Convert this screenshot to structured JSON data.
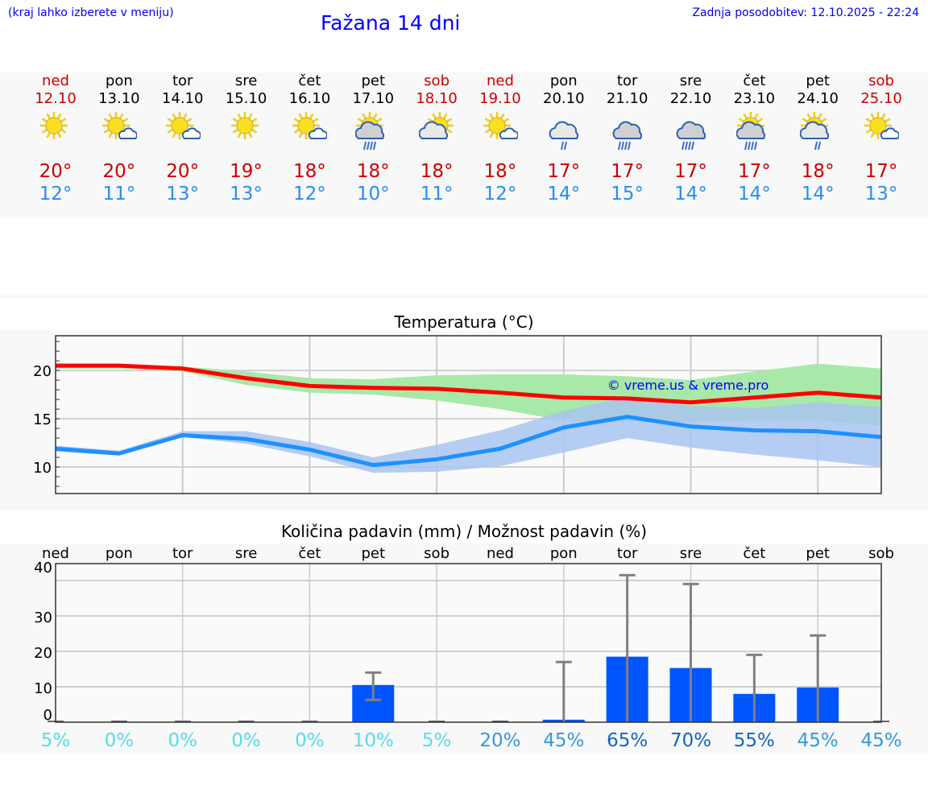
{
  "header": {
    "hint": "(kraj lahko izberete v meniju)",
    "title": "Fažana 14 dni",
    "updated": "Zadnja posodobitev: 12.10.2025 - 22:24"
  },
  "days": [
    {
      "name": "ned",
      "date": "12.10",
      "weekend": true,
      "icon": "sun",
      "max": "20°",
      "min": "12°"
    },
    {
      "name": "pon",
      "date": "13.10",
      "weekend": false,
      "icon": "sun-cloud",
      "max": "20°",
      "min": "11°"
    },
    {
      "name": "tor",
      "date": "14.10",
      "weekend": false,
      "icon": "sun-cloud",
      "max": "20°",
      "min": "13°"
    },
    {
      "name": "sre",
      "date": "15.10",
      "weekend": false,
      "icon": "sun",
      "max": "19°",
      "min": "13°"
    },
    {
      "name": "čet",
      "date": "16.10",
      "weekend": false,
      "icon": "sun-cloud",
      "max": "18°",
      "min": "12°"
    },
    {
      "name": "pet",
      "date": "17.10",
      "weekend": false,
      "icon": "sun-cloud-rain",
      "max": "18°",
      "min": "10°"
    },
    {
      "name": "sob",
      "date": "18.10",
      "weekend": true,
      "icon": "cloud-sun",
      "max": "18°",
      "min": "11°"
    },
    {
      "name": "ned",
      "date": "19.10",
      "weekend": true,
      "icon": "sun-cloud",
      "max": "18°",
      "min": "12°"
    },
    {
      "name": "pon",
      "date": "20.10",
      "weekend": false,
      "icon": "cloud-rain-light",
      "max": "17°",
      "min": "14°"
    },
    {
      "name": "tor",
      "date": "21.10",
      "weekend": false,
      "icon": "cloud-rain",
      "max": "17°",
      "min": "15°"
    },
    {
      "name": "sre",
      "date": "22.10",
      "weekend": false,
      "icon": "cloud-rain",
      "max": "17°",
      "min": "14°"
    },
    {
      "name": "čet",
      "date": "23.10",
      "weekend": false,
      "icon": "sun-cloud-rain",
      "max": "17°",
      "min": "14°"
    },
    {
      "name": "pet",
      "date": "24.10",
      "weekend": false,
      "icon": "sun-cloud-rain-light",
      "max": "18°",
      "min": "14°"
    },
    {
      "name": "sob",
      "date": "25.10",
      "weekend": true,
      "icon": "sun-cloud",
      "max": "17°",
      "min": "13°"
    }
  ],
  "colors": {
    "weekend": "#cc0000",
    "max": "#ff0000",
    "min": "#1e90ff",
    "maxband": "#a8e8a8",
    "minband": "#a8c4f0",
    "bar": "#0055ff",
    "err": "#808080"
  },
  "chart_data": [
    {
      "type": "line",
      "title": "Temperatura (°C)",
      "ylim": [
        7.25,
        23.6
      ],
      "yticks": [
        10,
        15,
        20
      ],
      "watermark": "© vreme.us & vreme.pro",
      "series": [
        {
          "name": "max",
          "values": [
            20.5,
            20.5,
            20.2,
            19.2,
            18.4,
            18.2,
            18.1,
            17.7,
            17.2,
            17.1,
            16.7,
            17.2,
            17.7,
            17.2
          ],
          "upper": [
            20.7,
            20.7,
            20.4,
            19.9,
            19.2,
            19.1,
            19.5,
            19.6,
            19.6,
            19.4,
            19.0,
            19.9,
            20.7,
            20.2
          ],
          "lower": [
            20.2,
            20.2,
            19.9,
            18.5,
            17.7,
            17.5,
            16.9,
            16.0,
            14.8,
            14.7,
            14.7,
            14.8,
            14.8,
            14.3
          ]
        },
        {
          "name": "min",
          "values": [
            11.9,
            11.4,
            13.3,
            12.9,
            11.8,
            10.2,
            10.8,
            11.9,
            14.1,
            15.2,
            14.2,
            13.8,
            13.7,
            13.1
          ],
          "upper": [
            12.2,
            11.7,
            13.7,
            13.7,
            12.6,
            11.0,
            12.3,
            13.8,
            15.8,
            17.3,
            16.3,
            16.1,
            16.7,
            16.2
          ],
          "lower": [
            11.6,
            11.2,
            13.1,
            12.4,
            11.1,
            9.4,
            9.5,
            10.1,
            11.5,
            13.0,
            12.0,
            11.3,
            10.7,
            10.0
          ]
        }
      ]
    },
    {
      "type": "bar",
      "title": "Količina padavin (mm) / Možnost padavin (%)",
      "categories": [
        "ned",
        "pon",
        "tor",
        "sre",
        "čet",
        "pet",
        "sob",
        "ned",
        "pon",
        "tor",
        "sre",
        "čet",
        "pet",
        "sob"
      ],
      "ylim": [
        0,
        42
      ],
      "yticks": [
        0,
        10,
        20,
        30,
        40
      ],
      "values": [
        0,
        0,
        0,
        0,
        0,
        10.5,
        0,
        0,
        0.7,
        18.5,
        15.3,
        8,
        9.8,
        0
      ],
      "err_low": [
        0,
        0,
        0,
        0,
        0,
        6.3,
        0,
        0,
        0,
        0,
        0,
        0,
        0,
        0
      ],
      "err_high": [
        0,
        0,
        0,
        0,
        0,
        14,
        0,
        0,
        17,
        41.5,
        39,
        19,
        24.5,
        0
      ],
      "probability": [
        "5%",
        "0%",
        "0%",
        "0%",
        "0%",
        "10%",
        "5%",
        "20%",
        "45%",
        "65%",
        "70%",
        "55%",
        "45%",
        "45%"
      ],
      "prob_colors": [
        "#55dde8",
        "#55dde8",
        "#55dde8",
        "#55dde8",
        "#55dde8",
        "#55dde8",
        "#55dde8",
        "#3399dd",
        "#3399dd",
        "#1166bb",
        "#1166bb",
        "#1166bb",
        "#3399dd",
        "#3399dd"
      ]
    }
  ]
}
